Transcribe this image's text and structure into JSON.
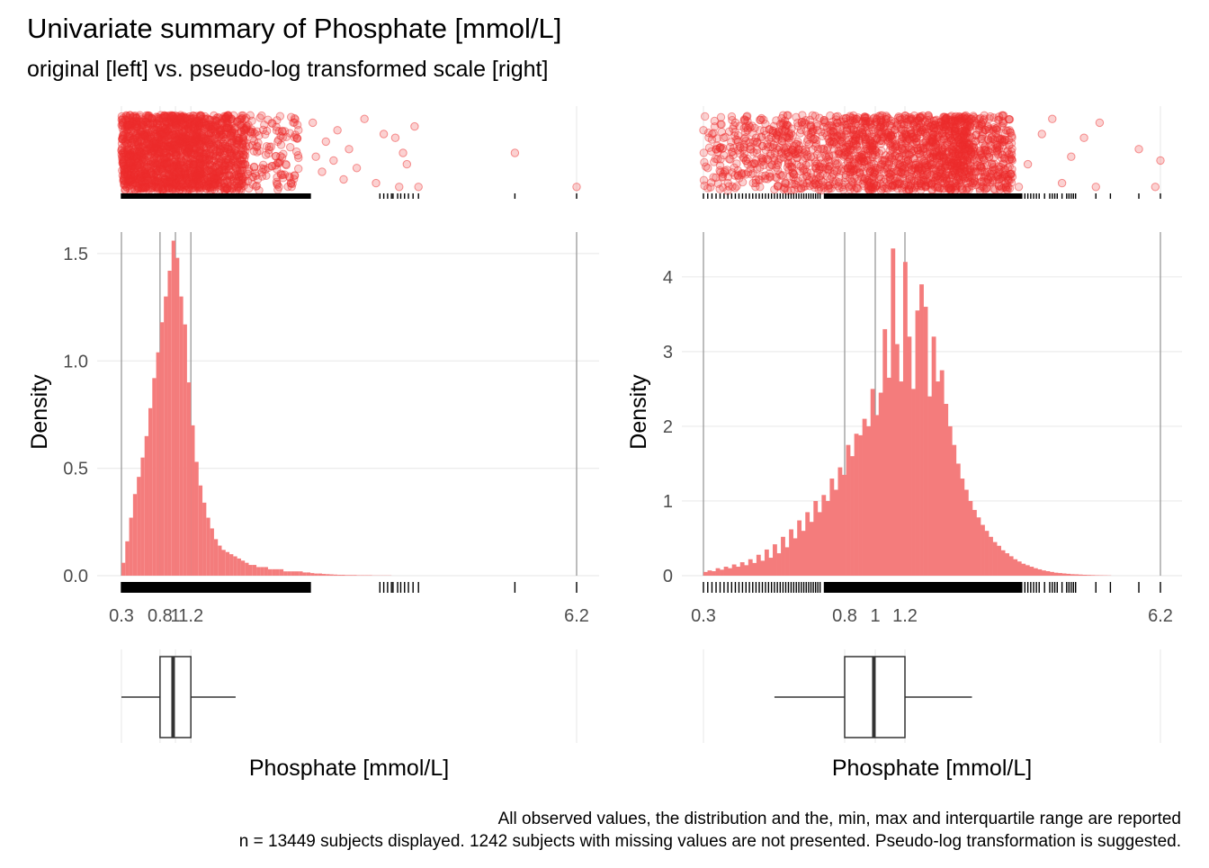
{
  "title": "Univariate summary of Phosphate [mmol/L]",
  "subtitle": "original [left] vs. pseudo-log transformed scale [right]",
  "caption": {
    "line1": "All observed values, the distribution and the, min, max and interquartile range are reported",
    "line2": "n = 13449 subjects displayed. 1242 subjects with missing values are not presented. Pseudo-log transformation is suggested."
  },
  "colors": {
    "accent": "#EE2C2C",
    "bar": "#F47C7C",
    "ref_line": "#999999",
    "grid": "#EBEBEB"
  },
  "chart_data": [
    {
      "type": "bar",
      "panel": "original",
      "xlabel": "Phosphate [mmol/L]",
      "ylabel": "Density",
      "x_ticks": [
        "0.3",
        "0.8",
        "1",
        "1.2",
        "6.2"
      ],
      "x_tick_values": [
        0.3,
        0.8,
        1.0,
        1.2,
        6.2
      ],
      "xlim": [
        0.3,
        6.2
      ],
      "y_ticks": [
        "0.0",
        "0.5",
        "1.0",
        "1.5"
      ],
      "y_tick_values": [
        0,
        0.5,
        1.0,
        1.5
      ],
      "ylim": [
        0,
        1.6
      ],
      "grid": true,
      "reference_lines": [
        0.3,
        0.8,
        1.0,
        1.2,
        6.2
      ],
      "boxplot": {
        "min": 0.3,
        "q1": 0.8,
        "median": 0.97,
        "q3": 1.2,
        "whisker_high": 1.78,
        "max": 6.2
      },
      "bins": {
        "start": 0.3,
        "width": 0.05,
        "values": [
          0.06,
          0.16,
          0.27,
          0.38,
          0.46,
          0.55,
          0.65,
          0.78,
          0.92,
          1.04,
          1.18,
          1.3,
          1.42,
          1.56,
          1.48,
          1.3,
          1.17,
          0.9,
          0.7,
          0.53,
          0.42,
          0.34,
          0.27,
          0.22,
          0.17,
          0.14,
          0.12,
          0.11,
          0.1,
          0.09,
          0.08,
          0.07,
          0.06,
          0.05,
          0.05,
          0.04,
          0.04,
          0.04,
          0.03,
          0.03,
          0.03,
          0.03,
          0.02,
          0.02,
          0.02,
          0.02,
          0.02,
          0.015,
          0.015,
          0.012,
          0.01,
          0.01,
          0.008,
          0.007,
          0.006,
          0.005,
          0.004,
          0.004,
          0.003,
          0.003,
          0.003,
          0.002,
          0.002,
          0.002,
          0.002,
          0.001,
          0.001,
          0.001,
          0.001,
          0.001
        ]
      },
      "outliers": [
        {
          "x": 2.78,
          "y": 0.1
        },
        {
          "x": 2.82,
          "y": 0.55
        },
        {
          "x": 2.9,
          "y": 0.75
        },
        {
          "x": 2.95,
          "y": 0.35
        },
        {
          "x": 3.05,
          "y": 0.6
        },
        {
          "x": 3.1,
          "y": 0.2
        },
        {
          "x": 3.18,
          "y": 0.85
        },
        {
          "x": 3.25,
          "y": 0.45
        },
        {
          "x": 3.35,
          "y": 0.7
        },
        {
          "x": 3.45,
          "y": 0.05
        },
        {
          "x": 3.6,
          "y": 0.9
        },
        {
          "x": 3.7,
          "y": 0.25
        },
        {
          "x": 3.9,
          "y": 0.95
        },
        {
          "x": 3.95,
          "y": 0.5
        },
        {
          "x": 4.1,
          "y": 0.15
        },
        {
          "x": 4.15,
          "y": 0.95
        },
        {
          "x": 4.0,
          "y": 0.65
        },
        {
          "x": 3.85,
          "y": 0.3
        },
        {
          "x": 5.4,
          "y": 0.5
        },
        {
          "x": 6.2,
          "y": 0.95
        }
      ],
      "rug_extra": [
        3.65,
        3.7,
        3.75,
        3.8,
        3.82,
        3.88,
        3.92,
        3.97,
        4.02,
        4.08,
        4.15,
        5.4,
        6.2
      ]
    },
    {
      "type": "bar",
      "panel": "pseudo-log",
      "xlabel": "Phosphate [mmol/L]",
      "ylabel": "Density",
      "x_ticks": [
        "0.3",
        "0.8",
        "1",
        "1.2",
        "6.2"
      ],
      "x_tick_values": [
        0.3,
        0.8,
        1.0,
        1.2,
        6.2
      ],
      "scale": "pseudo-log",
      "xlim": [
        0.3,
        6.2
      ],
      "y_ticks": [
        "0",
        "1",
        "2",
        "3",
        "4"
      ],
      "y_tick_values": [
        0,
        1,
        2,
        3,
        4
      ],
      "ylim": [
        0,
        4.6
      ],
      "grid": true,
      "reference_lines": [
        0.3,
        0.8,
        1.0,
        1.2,
        6.2
      ],
      "boxplot": {
        "min": 0.3,
        "whisker_low": 0.5,
        "q1": 0.8,
        "median": 0.99,
        "q3": 1.2,
        "whisker_high": 1.85,
        "max": 6.2
      },
      "densities": [
        0.05,
        0.07,
        0.06,
        0.1,
        0.08,
        0.12,
        0.1,
        0.15,
        0.12,
        0.18,
        0.14,
        0.22,
        0.17,
        0.28,
        0.2,
        0.35,
        0.24,
        0.42,
        0.3,
        0.52,
        0.38,
        0.62,
        0.5,
        0.74,
        0.6,
        0.85,
        0.72,
        1.0,
        0.85,
        1.08,
        1.0,
        1.3,
        1.15,
        1.45,
        1.35,
        1.75,
        1.6,
        1.9,
        1.88,
        2.1,
        2.0,
        2.5,
        2.15,
        2.45,
        3.3,
        2.65,
        4.38,
        3.1,
        2.6,
        4.2,
        3.2,
        2.5,
        3.55,
        3.9,
        3.6,
        2.4,
        3.2,
        2.6,
        2.75,
        2.3,
        2.0,
        1.75,
        1.5,
        1.3,
        1.15,
        1.0,
        0.88,
        0.78,
        0.68,
        0.6,
        0.52,
        0.45,
        0.4,
        0.34,
        0.3,
        0.26,
        0.22,
        0.19,
        0.16,
        0.14,
        0.12,
        0.1,
        0.085,
        0.07,
        0.06,
        0.05,
        0.04,
        0.035,
        0.03,
        0.025,
        0.02,
        0.018,
        0.015,
        0.012,
        0.01,
        0.008,
        0.006,
        0.005,
        0.004,
        0.003
      ],
      "outliers": [
        {
          "x": 0.3,
          "y": 0.2
        },
        {
          "x": 0.31,
          "y": 0.7
        },
        {
          "x": 0.33,
          "y": 0.45
        },
        {
          "x": 0.36,
          "y": 0.9
        },
        {
          "x": 0.38,
          "y": 0.1
        },
        {
          "x": 0.41,
          "y": 0.6
        },
        {
          "x": 0.44,
          "y": 0.3
        },
        {
          "x": 0.47,
          "y": 0.8
        },
        {
          "x": 1.95,
          "y": 0.5
        },
        {
          "x": 2.05,
          "y": 0.15
        },
        {
          "x": 2.2,
          "y": 0.85
        },
        {
          "x": 2.35,
          "y": 0.4
        },
        {
          "x": 2.5,
          "y": 0.95
        },
        {
          "x": 2.65,
          "y": 0.65
        },
        {
          "x": 2.9,
          "y": 0.25
        },
        {
          "x": 3.1,
          "y": 0.05
        },
        {
          "x": 3.3,
          "y": 0.9
        },
        {
          "x": 3.5,
          "y": 0.55
        },
        {
          "x": 3.8,
          "y": 0.3
        },
        {
          "x": 4.1,
          "y": 0.95
        },
        {
          "x": 4.2,
          "y": 0.1
        },
        {
          "x": 5.4,
          "y": 0.45
        },
        {
          "x": 6.0,
          "y": 0.95
        },
        {
          "x": 6.2,
          "y": 0.6
        }
      ],
      "rug_extra": [
        0.3,
        0.31,
        0.32,
        0.33,
        0.34,
        0.35,
        0.36,
        0.37,
        0.38,
        0.39,
        0.4,
        0.41,
        0.42,
        0.43,
        0.44,
        0.45,
        0.46,
        0.47,
        0.48,
        0.49,
        0.5,
        0.51,
        0.52,
        0.53,
        0.54,
        0.55,
        0.56,
        0.57,
        0.58,
        0.59,
        0.6,
        0.61,
        0.62,
        0.63,
        0.64,
        0.65,
        0.66,
        0.67,
        0.68,
        2.6,
        2.65,
        2.7,
        2.75,
        2.8,
        2.85,
        2.95,
        3.05,
        3.1,
        3.15,
        3.2,
        3.3,
        3.4,
        3.45,
        3.5,
        3.55,
        3.6,
        4.1,
        4.5,
        5.4,
        6.2
      ]
    }
  ]
}
